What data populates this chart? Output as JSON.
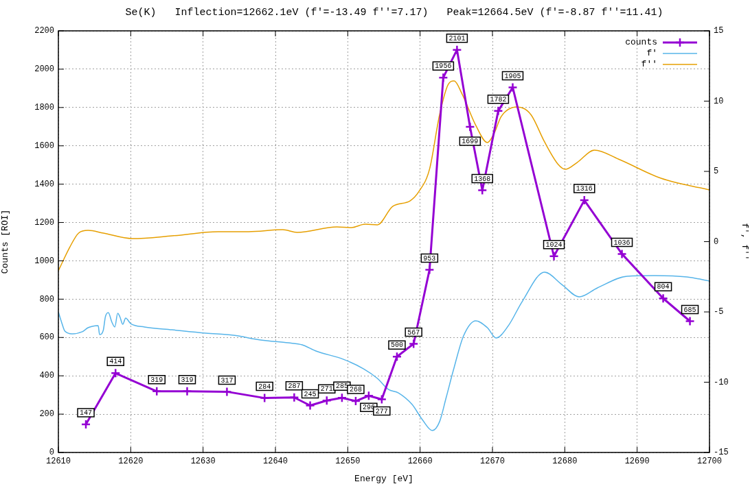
{
  "chart_data": {
    "type": "line",
    "title": "Se(K)   Inflection=12662.1eV (f′=-13.49 f′′=7.17)   Peak=12664.5eV (f′=-8.87 f′′=11.41)",
    "xlabel": "Energy [eV]",
    "ylabel": "Counts [ROI]",
    "y2label": "f′, f′′",
    "xlim": [
      12610,
      12700
    ],
    "xticks": [
      12610,
      12620,
      12630,
      12640,
      12650,
      12660,
      12670,
      12680,
      12690,
      12700
    ],
    "ylim": [
      0,
      2200
    ],
    "yticks": [
      0,
      200,
      400,
      600,
      800,
      1000,
      1200,
      1400,
      1600,
      1800,
      2000,
      2200
    ],
    "y2lim": [
      -15,
      15
    ],
    "y2ticks": [
      -15,
      -10,
      -5,
      0,
      5,
      10,
      15
    ],
    "grid": true,
    "legend": "top right",
    "series": [
      {
        "name": "counts",
        "color": "#9400d3",
        "marker": "cross",
        "x": [
          12613.8,
          12617.9,
          12623.6,
          12627.8,
          12633.3,
          12638.5,
          12642.6,
          12644.8,
          12647.1,
          12649.2,
          12651.1,
          12652.9,
          12654.7,
          12656.8,
          12659.1,
          12661.3,
          12663.2,
          12665.1,
          12666.9,
          12668.6,
          12670.8,
          12672.8,
          12678.5,
          12682.7,
          12687.9,
          12693.6,
          12697.3
        ],
        "values": [
          147,
          414,
          319,
          319,
          317,
          284,
          287,
          245,
          271,
          285,
          268,
          296,
          277,
          500,
          567,
          953,
          1956,
          2101,
          1699,
          1368,
          1782,
          1905,
          1024,
          1316,
          1036,
          804,
          685
        ],
        "value_labels": [
          "147",
          "414",
          "319",
          "319",
          "317",
          "284",
          "287",
          "245",
          "271",
          "285",
          "268",
          "296",
          "277",
          "500",
          "567",
          "953",
          "1956",
          "2101",
          "1699",
          "1368",
          "1782",
          "1905",
          "1024",
          "1316",
          "1036",
          "804",
          "685"
        ]
      },
      {
        "name": "f′",
        "color": "#56b4e9",
        "axis": "y2",
        "x": [
          12610.0,
          12610.5,
          12610.9,
          12611.9,
          12613.3,
          12614.1,
          12614.7,
          12615.5,
          12615.7,
          12616.2,
          12616.5,
          12616.9,
          12617.4,
          12617.8,
          12618.2,
          12618.5,
          12618.9,
          12619.3,
          12620.0,
          12621.9,
          12625.7,
          12630.4,
          12634.2,
          12638.0,
          12641.8,
          12643.7,
          12645.6,
          12649.4,
          12652.2,
          12654.1,
          12655.6,
          12657.0,
          12658.9,
          12660.3,
          12661.7,
          12662.7,
          12663.6,
          12664.6,
          12666.0,
          12667.7,
          12669.3,
          12670.5,
          12672.2,
          12674.1,
          12677.2,
          12679.6,
          12682.0,
          12684.5,
          12688.6,
          12692.4,
          12696.9,
          12700.0
        ],
        "values": [
          -5.0,
          -5.83,
          -6.37,
          -6.56,
          -6.41,
          -6.12,
          -6.02,
          -5.98,
          -6.61,
          -6.32,
          -5.34,
          -5.05,
          -5.73,
          -6.07,
          -5.1,
          -5.34,
          -5.88,
          -5.44,
          -5.83,
          -6.07,
          -6.27,
          -6.51,
          -6.66,
          -7.0,
          -7.2,
          -7.34,
          -7.78,
          -8.37,
          -9.05,
          -9.73,
          -10.51,
          -10.76,
          -11.59,
          -12.66,
          -13.44,
          -12.8,
          -11.1,
          -9.15,
          -6.71,
          -5.63,
          -6.12,
          -6.85,
          -5.98,
          -4.27,
          -2.17,
          -3.05,
          -3.93,
          -3.29,
          -2.46,
          -2.41,
          -2.51,
          -2.8
        ]
      },
      {
        "name": "f′′",
        "color": "#e69f00",
        "axis": "y2",
        "x": [
          12610.0,
          12611.6,
          12612.8,
          12614.1,
          12616.2,
          12620.2,
          12625.7,
          12632.1,
          12636.3,
          12641.0,
          12643.0,
          12648.5,
          12650.5,
          12652.4,
          12654.1,
          12656.2,
          12658.6,
          12659.8,
          12661.3,
          12662.7,
          12663.9,
          12664.7,
          12665.8,
          12667.7,
          12669.3,
          12670.3,
          12671.2,
          12673.4,
          12675.3,
          12677.2,
          12679.1,
          12680.1,
          12681.7,
          12684.1,
          12687.4,
          12693.3,
          12700.0
        ],
        "values": [
          -2.07,
          -0.37,
          0.61,
          0.8,
          0.61,
          0.22,
          0.41,
          0.71,
          0.71,
          0.85,
          0.66,
          1.05,
          1.0,
          1.24,
          1.2,
          2.51,
          2.9,
          3.54,
          5.15,
          9.05,
          11.2,
          11.44,
          10.51,
          8.27,
          7.05,
          7.78,
          8.9,
          9.59,
          9.05,
          7.1,
          5.49,
          5.15,
          5.63,
          6.51,
          5.88,
          4.51,
          3.68
        ]
      }
    ]
  }
}
